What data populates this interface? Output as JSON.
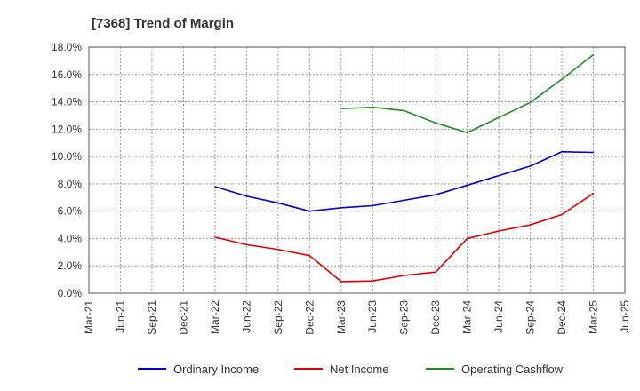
{
  "chart_data": {
    "type": "line",
    "title": "[7368]  Trend of Margin",
    "xlabel": "",
    "ylabel": "",
    "categories": [
      "Mar-21",
      "Jun-21",
      "Sep-21",
      "Dec-21",
      "Mar-22",
      "Jun-22",
      "Sep-22",
      "Dec-22",
      "Mar-23",
      "Jun-23",
      "Sep-23",
      "Dec-23",
      "Mar-24",
      "Jun-24",
      "Sep-24",
      "Dec-24",
      "Mar-25",
      "Jun-25"
    ],
    "ylim": [
      0,
      18
    ],
    "yticks": [
      "0.0%",
      "2.0%",
      "4.0%",
      "6.0%",
      "8.0%",
      "10.0%",
      "12.0%",
      "14.0%",
      "16.0%",
      "18.0%"
    ],
    "grid": true,
    "legend_position": "bottom",
    "series": [
      {
        "name": "Ordinary Income",
        "color": "#0000cc",
        "values": [
          null,
          null,
          null,
          null,
          7.8,
          7.1,
          6.6,
          6.0,
          6.25,
          6.4,
          6.8,
          7.2,
          7.9,
          8.6,
          9.3,
          10.35,
          10.3,
          null
        ]
      },
      {
        "name": "Net Income",
        "color": "#dd0000",
        "values": [
          null,
          null,
          null,
          null,
          4.1,
          3.55,
          3.2,
          2.75,
          0.85,
          0.9,
          1.3,
          1.55,
          4.0,
          4.55,
          5.0,
          5.75,
          7.3,
          null
        ]
      },
      {
        "name": "Operating Cashflow",
        "color": "#228b22",
        "values": [
          null,
          null,
          null,
          null,
          null,
          null,
          null,
          null,
          13.5,
          13.6,
          13.35,
          12.45,
          11.75,
          12.85,
          13.95,
          15.65,
          17.45,
          null
        ]
      }
    ]
  }
}
